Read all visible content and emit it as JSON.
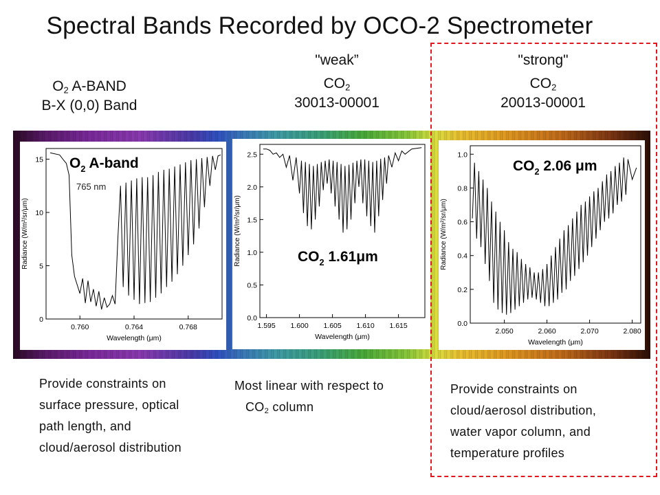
{
  "title": "Spectral Bands Recorded by OCO-2 Spectrometer",
  "headers": [
    {
      "line1": "",
      "line2_pre": "O",
      "line2_sub": "2",
      "line2_post": " A-BAND",
      "line3": "B-X (0,0) Band"
    },
    {
      "line1": "\"weak”",
      "line2_pre": "CO",
      "line2_sub": "2",
      "line2_post": "",
      "line3": "30013-00001"
    },
    {
      "line1": "\"strong\"",
      "line2_pre": "CO",
      "line2_sub": "2",
      "line2_post": "",
      "line3": "20013-00001"
    }
  ],
  "descriptions": [
    {
      "lines": [
        "Provide constraints on",
        "surface pressure, optical",
        "path length, and",
        "cloud/aerosol distribution"
      ]
    },
    {
      "line1": "Most linear with respect to",
      "line2_pre": "CO",
      "line2_sub": "2",
      "line2_post": " column"
    },
    {
      "lines": [
        "Provide constraints on",
        "cloud/aerosol distribution,",
        "water vapor column, and",
        "temperature  profiles"
      ]
    }
  ],
  "colors": {
    "highlight_box": "#e0171f",
    "text": "#111111",
    "plot_line": "#000000"
  },
  "chart_data": [
    {
      "type": "line",
      "title_pre": "O",
      "title_sub": "2",
      "title_post": " A-band",
      "annotation": "765 nm",
      "xlabel": "Wavelength (μm)",
      "ylabel": "Radiance (W/m²/sr/μm)",
      "xlim": [
        0.7575,
        0.7705
      ],
      "ylim": [
        0,
        16
      ],
      "xticks": [
        "0.760",
        "0.764",
        "0.768"
      ],
      "xtick_values": [
        0.76,
        0.764,
        0.768
      ],
      "yticks": [
        "0",
        "5",
        "10",
        "15"
      ],
      "ytick_values": [
        0,
        5,
        10,
        15
      ],
      "series": [
        {
          "points": [
            [
              0.7578,
              15.6
            ],
            [
              0.7585,
              15.4
            ],
            [
              0.7588,
              14.9
            ],
            [
              0.759,
              14.6
            ],
            [
              0.7592,
              13.5
            ],
            [
              0.7594,
              6.0
            ],
            [
              0.7596,
              4.0
            ],
            [
              0.7598,
              3.2
            ],
            [
              0.76,
              2.4
            ],
            [
              0.7602,
              3.8
            ],
            [
              0.7604,
              1.5
            ],
            [
              0.7606,
              3.6
            ],
            [
              0.7608,
              1.6
            ],
            [
              0.761,
              2.8
            ],
            [
              0.7612,
              1.2
            ],
            [
              0.7614,
              2.6
            ],
            [
              0.7616,
              0.9
            ],
            [
              0.7618,
              2.0
            ],
            [
              0.762,
              1.1
            ],
            [
              0.7622,
              1.4
            ],
            [
              0.7624,
              2.2
            ],
            [
              0.7626,
              1.4
            ],
            [
              0.7628,
              7.5
            ],
            [
              0.763,
              12.5
            ],
            [
              0.7632,
              3.0
            ],
            [
              0.7634,
              12.8
            ],
            [
              0.7636,
              2.2
            ],
            [
              0.7638,
              13.0
            ],
            [
              0.764,
              1.8
            ],
            [
              0.7642,
              13.2
            ],
            [
              0.7644,
              1.4
            ],
            [
              0.7646,
              13.3
            ],
            [
              0.7648,
              1.5
            ],
            [
              0.765,
              13.3
            ],
            [
              0.7652,
              1.6
            ],
            [
              0.7654,
              13.5
            ],
            [
              0.7656,
              2.0
            ],
            [
              0.7658,
              13.8
            ],
            [
              0.766,
              2.4
            ],
            [
              0.7662,
              14.0
            ],
            [
              0.7664,
              3.0
            ],
            [
              0.7666,
              14.1
            ],
            [
              0.7668,
              3.5
            ],
            [
              0.767,
              14.3
            ],
            [
              0.7672,
              4.2
            ],
            [
              0.7674,
              14.5
            ],
            [
              0.7676,
              5.0
            ],
            [
              0.7678,
              14.7
            ],
            [
              0.768,
              6.0
            ],
            [
              0.7682,
              14.9
            ],
            [
              0.7684,
              7.0
            ],
            [
              0.7686,
              15.0
            ],
            [
              0.7688,
              8.5
            ],
            [
              0.769,
              15.1
            ],
            [
              0.7692,
              10.5
            ],
            [
              0.7694,
              15.2
            ],
            [
              0.7696,
              12.5
            ],
            [
              0.7698,
              15.3
            ],
            [
              0.77,
              14.0
            ],
            [
              0.7702,
              15.3
            ],
            [
              0.7704,
              15.4
            ]
          ]
        }
      ]
    },
    {
      "type": "line",
      "title_pre": "CO",
      "title_sub": "2",
      "title_post": " 1.61μm",
      "xlabel": "Wavelength (μm)",
      "ylabel": "Radiance (W/m²/sr/μm)",
      "xlim": [
        1.594,
        1.619
      ],
      "ylim": [
        0,
        2.65
      ],
      "xticks": [
        "1.595",
        "1.600",
        "1.605",
        "1.610",
        "1.615"
      ],
      "xtick_values": [
        1.595,
        1.6,
        1.605,
        1.61,
        1.615
      ],
      "yticks": [
        "0.0",
        "0.5",
        "1.0",
        "1.5",
        "2.0",
        "2.5"
      ],
      "ytick_values": [
        0,
        0.5,
        1.0,
        1.5,
        2.0,
        2.5
      ],
      "series": [
        {
          "points": [
            [
              1.5945,
              2.58
            ],
            [
              1.595,
              2.58
            ],
            [
              1.5955,
              2.56
            ],
            [
              1.596,
              2.5
            ],
            [
              1.5965,
              2.52
            ],
            [
              1.597,
              2.45
            ],
            [
              1.5975,
              2.5
            ],
            [
              1.598,
              2.3
            ],
            [
              1.5985,
              2.48
            ],
            [
              1.599,
              2.1
            ],
            [
              1.5995,
              2.45
            ],
            [
              1.6,
              1.9
            ],
            [
              1.6003,
              2.4
            ],
            [
              1.6006,
              1.6
            ],
            [
              1.6009,
              2.38
            ],
            [
              1.6012,
              1.4
            ],
            [
              1.6015,
              2.35
            ],
            [
              1.6018,
              1.35
            ],
            [
              1.6021,
              2.32
            ],
            [
              1.6024,
              1.5
            ],
            [
              1.6027,
              2.35
            ],
            [
              1.603,
              1.7
            ],
            [
              1.6033,
              2.38
            ],
            [
              1.6036,
              1.95
            ],
            [
              1.6039,
              2.4
            ],
            [
              1.6042,
              2.05
            ],
            [
              1.6045,
              2.42
            ],
            [
              1.6048,
              1.9
            ],
            [
              1.6051,
              2.4
            ],
            [
              1.6054,
              1.7
            ],
            [
              1.6057,
              2.38
            ],
            [
              1.606,
              1.5
            ],
            [
              1.6063,
              2.35
            ],
            [
              1.6066,
              1.3
            ],
            [
              1.6069,
              2.32
            ],
            [
              1.6072,
              1.35
            ],
            [
              1.6075,
              2.34
            ],
            [
              1.6078,
              1.5
            ],
            [
              1.6081,
              2.37
            ],
            [
              1.6084,
              1.75
            ],
            [
              1.6087,
              2.4
            ],
            [
              1.609,
              2.0
            ],
            [
              1.6093,
              2.42
            ],
            [
              1.6096,
              1.75
            ],
            [
              1.6099,
              2.42
            ],
            [
              1.6102,
              1.55
            ],
            [
              1.6105,
              2.4
            ],
            [
              1.6108,
              1.4
            ],
            [
              1.6111,
              2.38
            ],
            [
              1.6114,
              1.3
            ],
            [
              1.6117,
              2.4
            ],
            [
              1.612,
              1.55
            ],
            [
              1.6123,
              2.43
            ],
            [
              1.6126,
              1.8
            ],
            [
              1.6129,
              2.45
            ],
            [
              1.6132,
              2.05
            ],
            [
              1.6135,
              2.48
            ],
            [
              1.614,
              2.3
            ],
            [
              1.6145,
              2.52
            ],
            [
              1.615,
              2.4
            ],
            [
              1.6155,
              2.55
            ],
            [
              1.616,
              2.5
            ],
            [
              1.617,
              2.58
            ],
            [
              1.6185,
              2.6
            ]
          ]
        }
      ]
    },
    {
      "type": "line",
      "title_pre": "CO",
      "title_sub": "2",
      "title_post": " 2.06 μm",
      "xlabel": "Wavelength (μm)",
      "ylabel": "Radiance (W/m²/sr/μm)",
      "xlim": [
        2.042,
        2.082
      ],
      "ylim": [
        0,
        1.05
      ],
      "xticks": [
        "2.050",
        "2.060",
        "2.070",
        "2.080"
      ],
      "xtick_values": [
        2.05,
        2.06,
        2.07,
        2.08
      ],
      "yticks": [
        "0.0",
        "0.2",
        "0.4",
        "0.6",
        "0.8",
        "1.0"
      ],
      "ytick_values": [
        0,
        0.2,
        0.4,
        0.6,
        0.8,
        1.0
      ],
      "series": [
        {
          "points": [
            [
              2.0425,
              0.62
            ],
            [
              2.043,
              0.95
            ],
            [
              2.0435,
              0.5
            ],
            [
              2.044,
              0.9
            ],
            [
              2.0445,
              0.45
            ],
            [
              2.045,
              0.85
            ],
            [
              2.0455,
              0.35
            ],
            [
              2.046,
              0.8
            ],
            [
              2.0465,
              0.25
            ],
            [
              2.047,
              0.72
            ],
            [
              2.0475,
              0.12
            ],
            [
              2.048,
              0.66
            ],
            [
              2.0485,
              0.08
            ],
            [
              2.049,
              0.6
            ],
            [
              2.0495,
              0.06
            ],
            [
              2.05,
              0.55
            ],
            [
              2.0505,
              0.05
            ],
            [
              2.051,
              0.48
            ],
            [
              2.0515,
              0.06
            ],
            [
              2.052,
              0.44
            ],
            [
              2.0525,
              0.08
            ],
            [
              2.053,
              0.42
            ],
            [
              2.0535,
              0.1
            ],
            [
              2.054,
              0.38
            ],
            [
              2.0545,
              0.12
            ],
            [
              2.055,
              0.35
            ],
            [
              2.0555,
              0.14
            ],
            [
              2.056,
              0.33
            ],
            [
              2.0565,
              0.15
            ],
            [
              2.057,
              0.3
            ],
            [
              2.0575,
              0.14
            ],
            [
              2.058,
              0.3
            ],
            [
              2.0585,
              0.12
            ],
            [
              2.059,
              0.32
            ],
            [
              2.0595,
              0.1
            ],
            [
              2.06,
              0.35
            ],
            [
              2.0605,
              0.1
            ],
            [
              2.061,
              0.4
            ],
            [
              2.0615,
              0.12
            ],
            [
              2.062,
              0.45
            ],
            [
              2.0625,
              0.14
            ],
            [
              2.063,
              0.5
            ],
            [
              2.0635,
              0.18
            ],
            [
              2.064,
              0.55
            ],
            [
              2.0645,
              0.2
            ],
            [
              2.065,
              0.58
            ],
            [
              2.0655,
              0.25
            ],
            [
              2.066,
              0.62
            ],
            [
              2.0665,
              0.28
            ],
            [
              2.067,
              0.66
            ],
            [
              2.0675,
              0.32
            ],
            [
              2.068,
              0.7
            ],
            [
              2.0685,
              0.36
            ],
            [
              2.069,
              0.72
            ],
            [
              2.0695,
              0.4
            ],
            [
              2.07,
              0.75
            ],
            [
              2.0705,
              0.45
            ],
            [
              2.071,
              0.78
            ],
            [
              2.0715,
              0.5
            ],
            [
              2.072,
              0.8
            ],
            [
              2.0725,
              0.55
            ],
            [
              2.073,
              0.84
            ],
            [
              2.0735,
              0.6
            ],
            [
              2.074,
              0.88
            ],
            [
              2.0745,
              0.62
            ],
            [
              2.075,
              0.9
            ],
            [
              2.0755,
              0.65
            ],
            [
              2.076,
              0.93
            ],
            [
              2.0765,
              0.7
            ],
            [
              2.077,
              0.95
            ],
            [
              2.0775,
              0.72
            ],
            [
              2.078,
              0.98
            ],
            [
              2.0785,
              0.76
            ],
            [
              2.079,
              0.97
            ],
            [
              2.08,
              0.85
            ],
            [
              2.081,
              0.92
            ]
          ]
        }
      ]
    }
  ]
}
